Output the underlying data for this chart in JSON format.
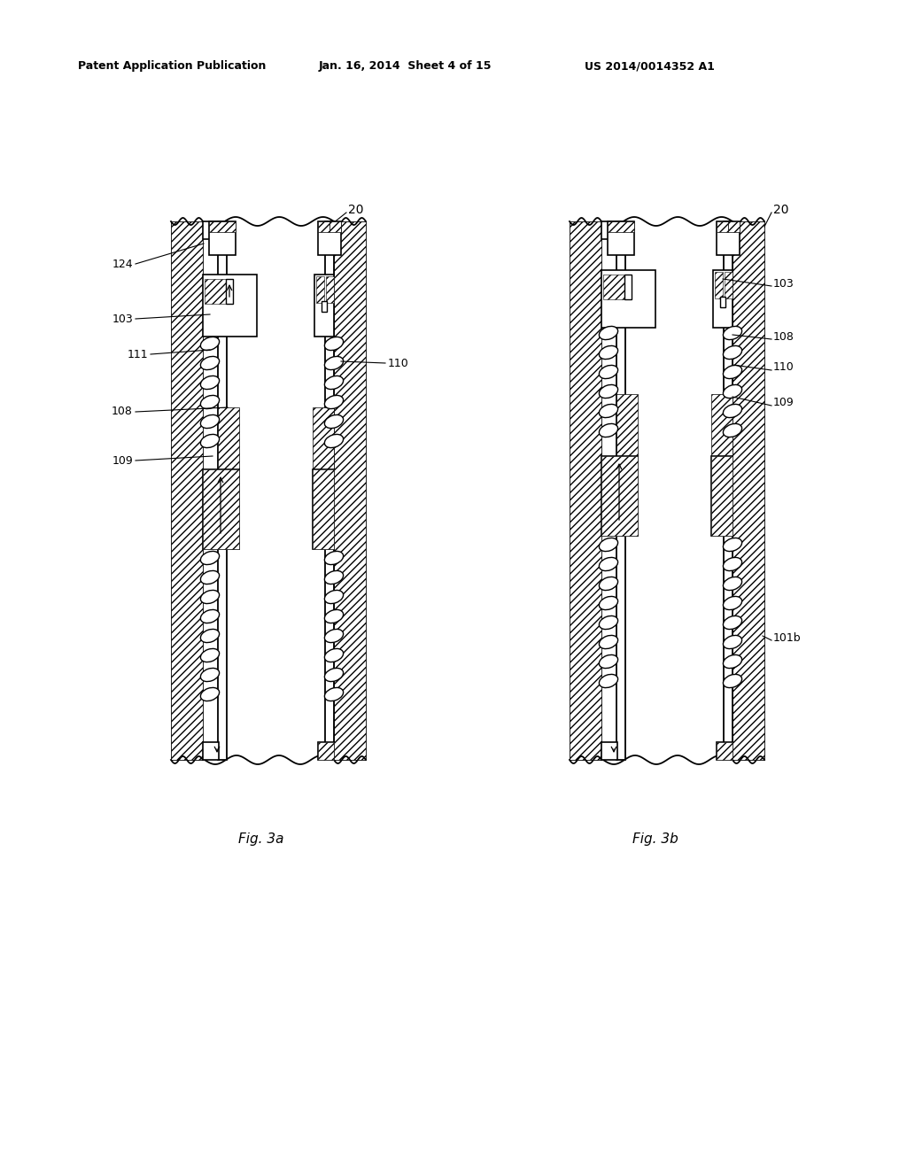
{
  "bg_color": "#ffffff",
  "line_color": "#000000",
  "header_text": "Patent Application Publication",
  "header_date": "Jan. 16, 2014  Sheet 4 of 15",
  "header_patent": "US 2014/0014352 A1",
  "fig_label_a": "Fig. 3a",
  "fig_label_b": "Fig. 3b"
}
